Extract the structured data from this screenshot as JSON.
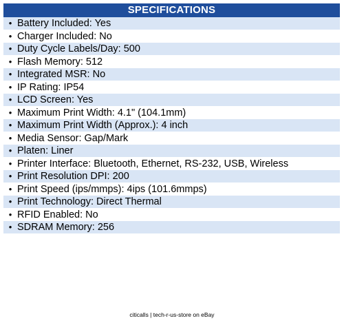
{
  "header": {
    "title": "SPECIFICATIONS"
  },
  "specs": [
    "Battery Included: Yes",
    "Charger Included: No",
    "Duty Cycle Labels/Day: 500",
    "Flash Memory: 512",
    "Integrated MSR: No",
    "IP Rating: IP54",
    "LCD Screen: Yes",
    "Maximum Print Width: 4.1\" (104.1mm)",
    "Maximum Print Width (Approx.): 4 inch",
    "Media Sensor: Gap/Mark",
    "Platen: Liner",
    "Printer Interface: Bluetooth, Ethernet, RS-232, USB, Wireless",
    "Print Resolution DPI: 200",
    "Print Speed (ips/mmps): 4ips (101.6mmps)",
    "Print Technology: Direct Thermal",
    "RFID Enabled: No",
    "SDRAM Memory: 256"
  ],
  "bullet_glyph": "•",
  "colors": {
    "header_bg": "#1f4e9c",
    "row_shade": "#d9e5f5"
  },
  "footer": {
    "text": "citicalls | tech-r-us-store on eBay"
  }
}
